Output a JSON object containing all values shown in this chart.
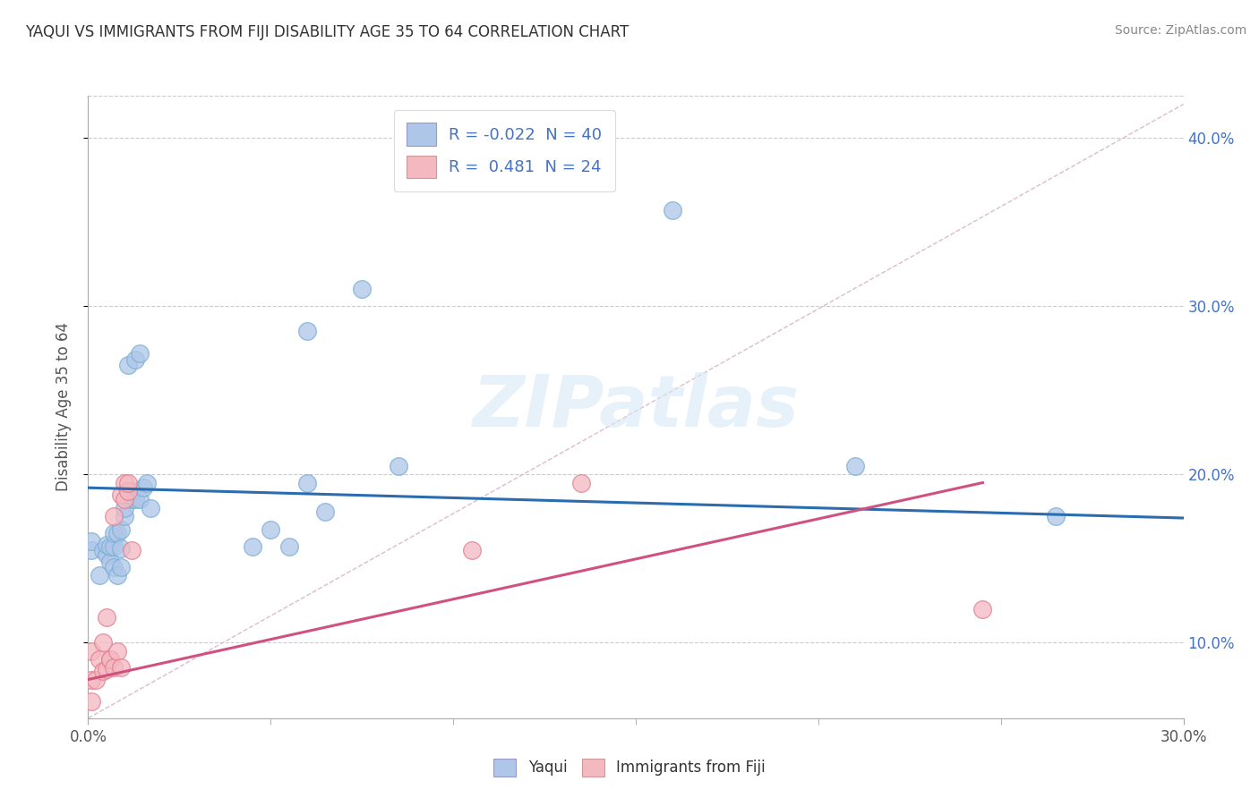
{
  "title": "YAQUI VS IMMIGRANTS FROM FIJI DISABILITY AGE 35 TO 64 CORRELATION CHART",
  "source": "Source: ZipAtlas.com",
  "ylabel": "Disability Age 35 to 64",
  "xlim": [
    0.0,
    0.3
  ],
  "ylim": [
    0.055,
    0.425
  ],
  "legend_top": [
    "R = -0.022  N = 40",
    "R =  0.481  N = 24"
  ],
  "legend_bottom": [
    "Yaqui",
    "Immigrants from Fiji"
  ],
  "yaqui_color": "#aec6e8",
  "fiji_color": "#f4b8c1",
  "yaqui_line_color": "#2b6cb0",
  "fiji_line_color": "#d05080",
  "diagonal_color": "#cccccc",
  "watermark": "ZIPatlas",
  "background_color": "#ffffff",
  "grid_color": "#cccccc",
  "yaqui_x": [
    0.001,
    0.001,
    0.003,
    0.004,
    0.005,
    0.005,
    0.006,
    0.006,
    0.007,
    0.007,
    0.007,
    0.008,
    0.008,
    0.009,
    0.009,
    0.009,
    0.01,
    0.01,
    0.011,
    0.011,
    0.012,
    0.012,
    0.013,
    0.013,
    0.014,
    0.014,
    0.015,
    0.016,
    0.017,
    0.045,
    0.05,
    0.055,
    0.06,
    0.06,
    0.065,
    0.075,
    0.085,
    0.16,
    0.21,
    0.265
  ],
  "yaqui_y": [
    0.155,
    0.16,
    0.14,
    0.155,
    0.152,
    0.158,
    0.148,
    0.157,
    0.145,
    0.157,
    0.165,
    0.14,
    0.165,
    0.145,
    0.156,
    0.167,
    0.175,
    0.18,
    0.19,
    0.265,
    0.185,
    0.19,
    0.185,
    0.268,
    0.272,
    0.185,
    0.192,
    0.195,
    0.18,
    0.157,
    0.167,
    0.157,
    0.195,
    0.285,
    0.178,
    0.31,
    0.205,
    0.357,
    0.205,
    0.175
  ],
  "fiji_x": [
    0.001,
    0.001,
    0.001,
    0.002,
    0.003,
    0.004,
    0.004,
    0.005,
    0.005,
    0.006,
    0.006,
    0.007,
    0.007,
    0.008,
    0.009,
    0.009,
    0.01,
    0.01,
    0.011,
    0.011,
    0.012,
    0.105,
    0.135,
    0.245
  ],
  "fiji_y": [
    0.065,
    0.078,
    0.095,
    0.078,
    0.09,
    0.083,
    0.1,
    0.084,
    0.115,
    0.09,
    0.09,
    0.085,
    0.175,
    0.095,
    0.188,
    0.085,
    0.185,
    0.195,
    0.19,
    0.195,
    0.155,
    0.155,
    0.195,
    0.12
  ],
  "yaqui_trendline": [
    0.0,
    0.3,
    0.192,
    0.174
  ],
  "fiji_trendline": [
    0.0,
    0.245,
    0.078,
    0.195
  ]
}
